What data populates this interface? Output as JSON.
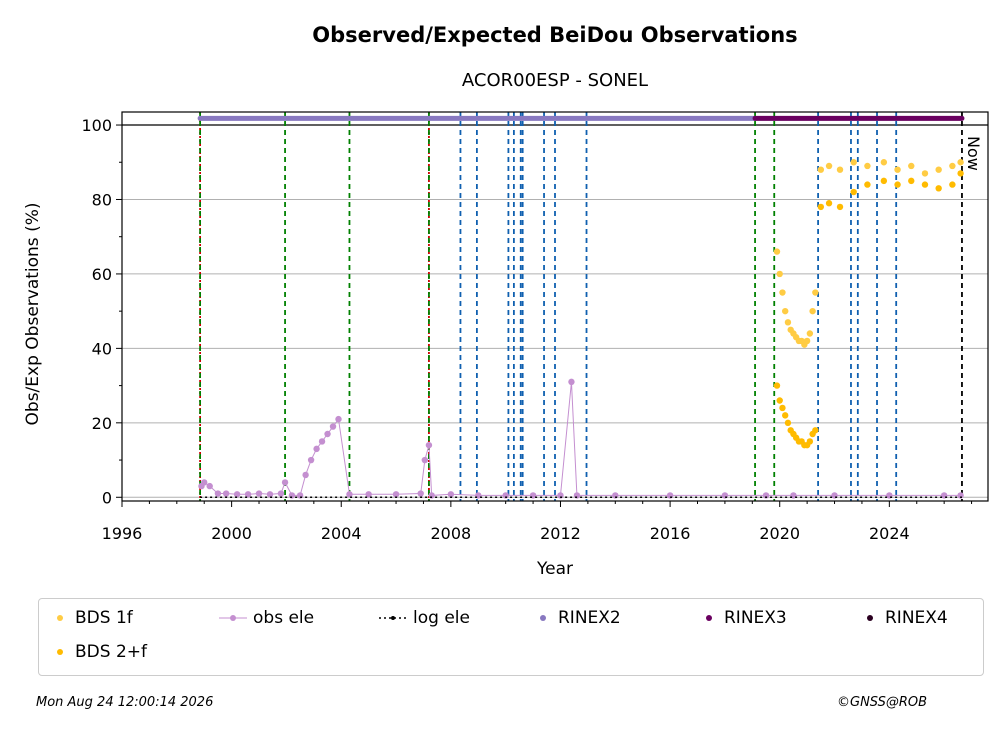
{
  "chart_data": {
    "type": "scatter",
    "title": "Observed/Expected BeiDou Observations",
    "subtitle": "ACOR00ESP - SONEL",
    "xlabel": "Year",
    "ylabel": "Obs/Exp Observations (%)",
    "xlim": [
      1996,
      2027.6
    ],
    "ylim": [
      -1,
      103.5
    ],
    "xticks": [
      1996,
      2000,
      2004,
      2008,
      2012,
      2016,
      2020,
      2024
    ],
    "yticks": [
      0,
      20,
      40,
      60,
      80,
      100
    ],
    "grid": "horizontal",
    "legend_position": "bottom",
    "now_label": "Now",
    "now_x": 2026.65,
    "vlines": [
      {
        "x": 1998.85,
        "color": "#cc0000",
        "style": "dotted"
      },
      {
        "x": 1998.85,
        "color": "#008000",
        "style": "dashed"
      },
      {
        "x": 2001.95,
        "color": "#008000",
        "style": "dashed"
      },
      {
        "x": 2004.3,
        "color": "#008000",
        "style": "dashed"
      },
      {
        "x": 2007.2,
        "color": "#cc0000",
        "style": "dotted"
      },
      {
        "x": 2007.2,
        "color": "#008000",
        "style": "dashed"
      },
      {
        "x": 2008.35,
        "color": "#1060b0",
        "style": "dashed"
      },
      {
        "x": 2008.95,
        "color": "#1060b0",
        "style": "dashed"
      },
      {
        "x": 2010.1,
        "color": "#1060b0",
        "style": "dashed"
      },
      {
        "x": 2010.3,
        "color": "#1060b0",
        "style": "dashed"
      },
      {
        "x": 2010.55,
        "color": "#1060b0",
        "style": "dashed"
      },
      {
        "x": 2010.62,
        "color": "#1060b0",
        "style": "dashed"
      },
      {
        "x": 2011.4,
        "color": "#1060b0",
        "style": "dashed"
      },
      {
        "x": 2011.8,
        "color": "#1060b0",
        "style": "dashed"
      },
      {
        "x": 2012.95,
        "color": "#1060b0",
        "style": "dashed"
      },
      {
        "x": 2019.1,
        "color": "#008000",
        "style": "dashed"
      },
      {
        "x": 2019.8,
        "color": "#008000",
        "style": "dashed"
      },
      {
        "x": 2021.4,
        "color": "#1060b0",
        "style": "dashed"
      },
      {
        "x": 2022.6,
        "color": "#1060b0",
        "style": "dashed"
      },
      {
        "x": 2022.85,
        "color": "#1060b0",
        "style": "dashed"
      },
      {
        "x": 2023.55,
        "color": "#1060b0",
        "style": "dashed"
      },
      {
        "x": 2024.25,
        "color": "#1060b0",
        "style": "dashed"
      },
      {
        "x": 2026.65,
        "color": "#000000",
        "style": "dashed"
      }
    ],
    "series": [
      {
        "name": "BDS 1f",
        "color": "#ffcc44",
        "x": [
          2019.9,
          2020.0,
          2020.1,
          2020.2,
          2020.3,
          2020.4,
          2020.5,
          2020.6,
          2020.7,
          2020.8,
          2020.9,
          2021.0,
          2021.1,
          2021.2,
          2021.3,
          2021.5,
          2021.8,
          2022.2,
          2022.7,
          2023.2,
          2023.8,
          2024.3,
          2024.8,
          2025.3,
          2025.8,
          2026.3,
          2026.6
        ],
        "y": [
          66,
          60,
          55,
          50,
          47,
          45,
          44,
          43,
          42,
          42,
          41,
          42,
          44,
          50,
          55,
          88,
          89,
          88,
          90,
          89,
          90,
          88,
          89,
          87,
          88,
          89,
          90
        ]
      },
      {
        "name": "BDS 2+f",
        "color": "#ffbb00",
        "x": [
          2019.9,
          2020.0,
          2020.1,
          2020.2,
          2020.3,
          2020.4,
          2020.5,
          2020.6,
          2020.7,
          2020.8,
          2020.9,
          2021.0,
          2021.1,
          2021.2,
          2021.3,
          2021.5,
          2021.8,
          2022.2,
          2022.7,
          2023.2,
          2023.8,
          2024.3,
          2024.8,
          2025.3,
          2025.8,
          2026.3,
          2026.6
        ],
        "y": [
          30,
          26,
          24,
          22,
          20,
          18,
          17,
          16,
          15,
          15,
          14,
          14,
          15,
          17,
          18,
          78,
          79,
          78,
          82,
          84,
          85,
          84,
          85,
          84,
          83,
          84,
          87
        ]
      },
      {
        "name": "obs ele",
        "color": "#c48fd0",
        "x": [
          1998.9,
          1999.0,
          1999.2,
          1999.5,
          1999.8,
          2000.2,
          2000.6,
          2001.0,
          2001.4,
          2001.8,
          2001.95,
          2002.2,
          2002.5,
          2002.7,
          2002.9,
          2003.1,
          2003.3,
          2003.5,
          2003.7,
          2003.9,
          2004.3,
          2005.0,
          2006.0,
          2006.9,
          2007.05,
          2007.2,
          2007.3,
          2008.0,
          2009.0,
          2010.0,
          2011.0,
          2012.0,
          2012.4,
          2012.6,
          2014.0,
          2016.0,
          2018.0,
          2019.5,
          2020.5,
          2022.0,
          2024.0,
          2026.0,
          2026.6
        ],
        "y": [
          3,
          4,
          3,
          1,
          1,
          0.8,
          0.8,
          1,
          0.8,
          1,
          4,
          0.5,
          0.5,
          6,
          10,
          13,
          15,
          17,
          19,
          21,
          0.8,
          0.8,
          0.8,
          1,
          10,
          14,
          0.5,
          0.8,
          0.5,
          0.5,
          0.5,
          0.5,
          31,
          0.5,
          0.5,
          0.5,
          0.5,
          0.5,
          0.5,
          0.5,
          0.5,
          0.5,
          0.5
        ]
      },
      {
        "name": "log ele",
        "color": "#000000",
        "x": [
          1998.85,
          2026.65
        ],
        "y": [
          0,
          0
        ]
      },
      {
        "name": "RINEX2",
        "color": "#8878c0",
        "x_range": [
          1998.85,
          2019.1
        ],
        "y": 101.8
      },
      {
        "name": "RINEX3",
        "color": "#6a0060",
        "x_range": [
          2019.1,
          2026.65
        ],
        "y": 101.8
      },
      {
        "name": "RINEX4",
        "color": "#2a0020",
        "x_range": [],
        "y": 101.8
      }
    ]
  },
  "legend": [
    {
      "label": "BDS 1f",
      "color": "#ffcc44",
      "marker": "dot"
    },
    {
      "label": "obs ele",
      "color": "#c48fd0",
      "marker": "line-dot"
    },
    {
      "label": "log ele",
      "color": "#000000",
      "marker": "dotted-line"
    },
    {
      "label": "RINEX2",
      "color": "#8878c0",
      "marker": "dot"
    },
    {
      "label": "RINEX3",
      "color": "#6a0060",
      "marker": "dot"
    },
    {
      "label": "RINEX4",
      "color": "#2a0020",
      "marker": "dot"
    },
    {
      "label": "BDS 2+f",
      "color": "#ffbb00",
      "marker": "dot"
    }
  ],
  "footer": {
    "timestamp": "Mon Aug 24 12:00:14 2026",
    "credit": "©GNSS@ROB"
  }
}
